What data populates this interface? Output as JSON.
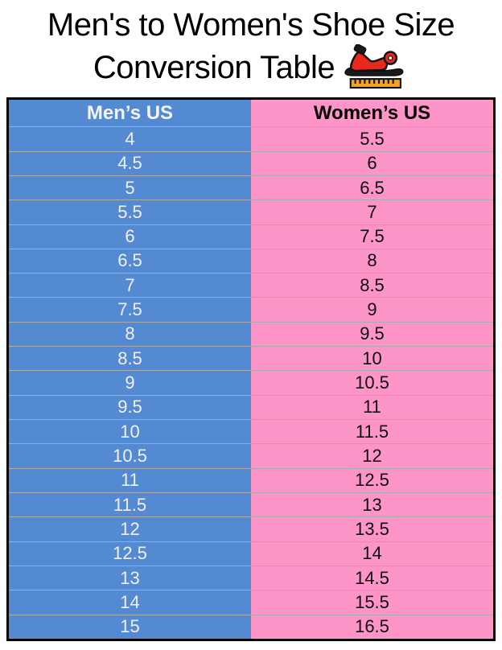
{
  "title": {
    "line1": "Men's to Women's Shoe Size",
    "line2": "Conversion Table"
  },
  "icon": {
    "name": "sandal-ruler-icon",
    "shoe_color": "#e8291c",
    "ruler_color": "#f6a21d",
    "outline_color": "#111111"
  },
  "table": {
    "headers": [
      "Men’s US",
      "Women’s US"
    ],
    "rows": [
      {
        "men": "4",
        "women": "5.5"
      },
      {
        "men": "4.5",
        "women": "6"
      },
      {
        "men": "5",
        "women": "6.5"
      },
      {
        "men": "5.5",
        "women": "7"
      },
      {
        "men": "6",
        "women": "7.5"
      },
      {
        "men": "6.5",
        "women": "8"
      },
      {
        "men": "7",
        "women": "8.5"
      },
      {
        "men": "7.5",
        "women": "9"
      },
      {
        "men": "8",
        "women": "9.5"
      },
      {
        "men": "8.5",
        "women": "10"
      },
      {
        "men": "9",
        "women": "10.5"
      },
      {
        "men": "9.5",
        "women": "11"
      },
      {
        "men": "10",
        "women": "11.5"
      },
      {
        "men": "10.5",
        "women": "12"
      },
      {
        "men": "11",
        "women": "12.5"
      },
      {
        "men": "11.5",
        "women": "13"
      },
      {
        "men": "12",
        "women": "13.5"
      },
      {
        "men": "12.5",
        "women": "14"
      },
      {
        "men": "13",
        "women": "14.5"
      },
      {
        "men": "14",
        "women": "15.5"
      },
      {
        "men": "15",
        "women": "16.5"
      }
    ]
  },
  "colors": {
    "men_column": "#548ad2",
    "women_column": "#fd95c9",
    "men_text": "#f2f0ef",
    "women_text": "#0d0d0d",
    "border": "#000000",
    "row_divider": "rgba(0,0,0,0.33)"
  },
  "chart_data": {
    "type": "table",
    "title": "Men's to Women's Shoe Size Conversion Table",
    "columns": [
      "Men's US",
      "Women's US"
    ],
    "rows": [
      [
        4,
        5.5
      ],
      [
        4.5,
        6
      ],
      [
        5,
        6.5
      ],
      [
        5.5,
        7
      ],
      [
        6,
        7.5
      ],
      [
        6.5,
        8
      ],
      [
        7,
        8.5
      ],
      [
        7.5,
        9
      ],
      [
        8,
        9.5
      ],
      [
        8.5,
        10
      ],
      [
        9,
        10.5
      ],
      [
        9.5,
        11
      ],
      [
        10,
        11.5
      ],
      [
        10.5,
        12
      ],
      [
        11,
        12.5
      ],
      [
        11.5,
        13
      ],
      [
        12,
        13.5
      ],
      [
        12.5,
        14
      ],
      [
        13,
        14.5
      ],
      [
        14,
        15.5
      ],
      [
        15,
        16.5
      ]
    ]
  }
}
